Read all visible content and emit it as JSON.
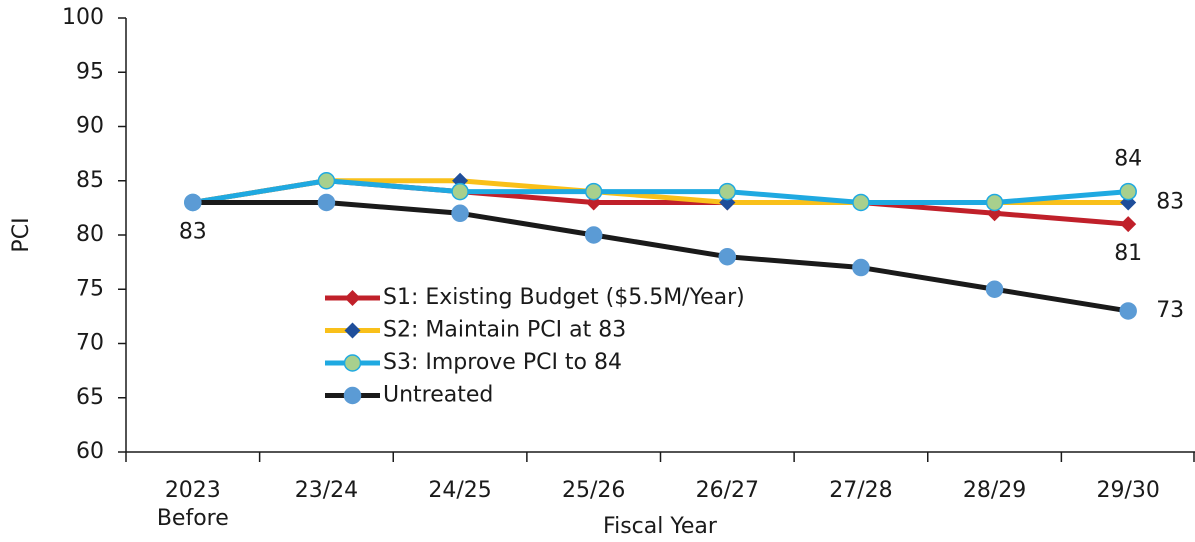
{
  "chart_data": {
    "type": "line",
    "categories": [
      "2023\nBefore",
      "23/24",
      "24/25",
      "25/26",
      "26/27",
      "27/28",
      "28/29",
      "29/30"
    ],
    "x_label": "Fiscal Year",
    "y_label": "PCI",
    "ylim": [
      60,
      100
    ],
    "yticks": [
      60,
      65,
      70,
      75,
      80,
      85,
      90,
      95,
      100
    ],
    "grid": false,
    "legend": "center-left",
    "series": [
      {
        "name": "S1: Existing Budget ($5.5M/Year)",
        "color": "#c0202a",
        "marker": "diamond",
        "marker_color": "#c0202a",
        "values": [
          83,
          85,
          84,
          83,
          83,
          83,
          82,
          81
        ],
        "value_labels": [
          "83",
          null,
          null,
          null,
          null,
          null,
          null,
          "81"
        ]
      },
      {
        "name": "S2: Maintain PCI at 83",
        "color": "#f9c01a",
        "marker": "diamond",
        "marker_color": "#1f4e9a",
        "values": [
          83,
          85,
          85,
          84,
          83,
          83,
          83,
          83
        ],
        "value_labels": [
          null,
          null,
          null,
          null,
          null,
          null,
          null,
          "83"
        ]
      },
      {
        "name": "S3: Improve PCI to 84",
        "color": "#1fa9e1",
        "marker": "circle",
        "marker_color": "#a8d08d",
        "values": [
          83,
          85,
          84,
          84,
          84,
          83,
          83,
          84
        ],
        "value_labels": [
          null,
          null,
          null,
          null,
          null,
          null,
          null,
          "84"
        ]
      },
      {
        "name": "Untreated",
        "color": "#1a1a1a",
        "marker": "circle",
        "marker_color": "#5b9bd5",
        "values": [
          83,
          83,
          82,
          80,
          78,
          77,
          75,
          73
        ],
        "value_labels": [
          null,
          null,
          null,
          null,
          null,
          null,
          null,
          "73"
        ]
      }
    ]
  }
}
